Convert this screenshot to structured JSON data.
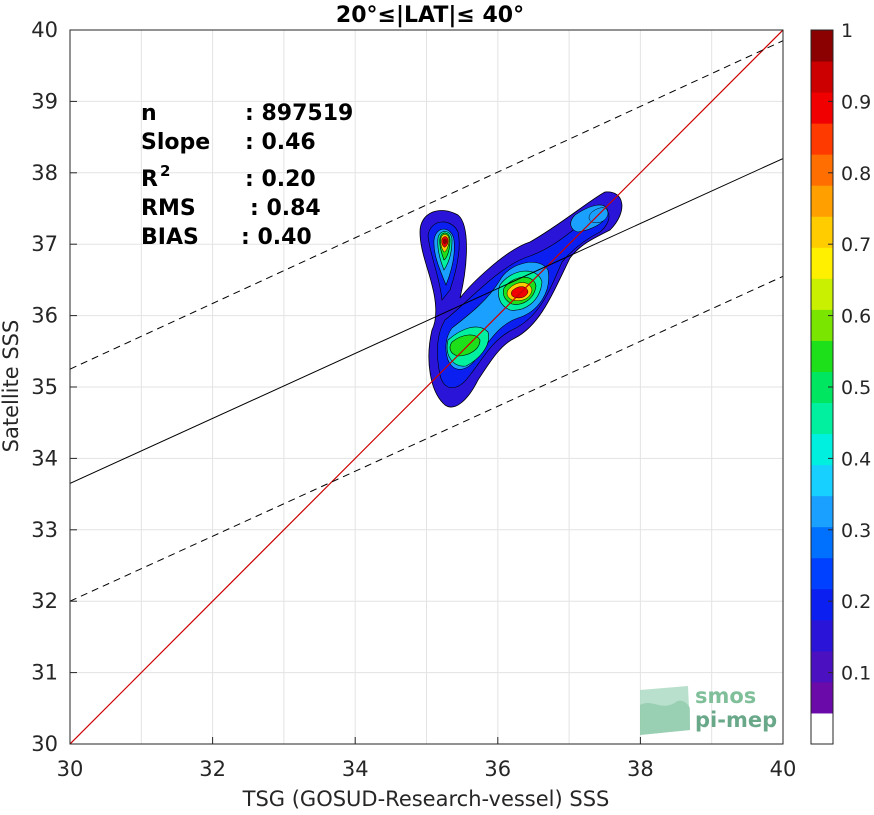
{
  "chart_data": {
    "type": "heatmap",
    "title": "20°≤|LAT|≤ 40°",
    "xlabel": "TSG (GOSUD-Research-vessel) SSS",
    "ylabel": "Satellite SSS",
    "xlim": [
      30,
      40
    ],
    "ylim": [
      30,
      40
    ],
    "xticks": [
      "30",
      "32",
      "34",
      "36",
      "38",
      "40"
    ],
    "yticks": [
      "30",
      "31",
      "32",
      "33",
      "34",
      "35",
      "36",
      "37",
      "38",
      "39",
      "40"
    ],
    "grid": true,
    "stats": [
      {
        "label": "n",
        "value": ": 897519"
      },
      {
        "label": "Slope",
        "value": ": 0.46"
      },
      {
        "label": "R",
        "sup": "2",
        "value": ": 0.20"
      },
      {
        "label": "RMS",
        "value": ": 0.84"
      },
      {
        "label": "BIAS",
        "value": ": 0.40"
      }
    ],
    "reference_lines": {
      "identity": {
        "x": [
          30,
          40
        ],
        "y": [
          30,
          40
        ],
        "color": "#cc0000"
      },
      "fit": {
        "x": [
          30,
          40
        ],
        "y": [
          33.65,
          38.2
        ],
        "color": "#000000"
      },
      "fit_upper": {
        "x": [
          30,
          40
        ],
        "y": [
          35.25,
          39.85
        ],
        "color": "#000000"
      },
      "fit_lower": {
        "x": [
          30,
          40
        ],
        "y": [
          32.0,
          36.55
        ],
        "color": "#000000"
      }
    },
    "density_peaks": [
      {
        "x": 35.25,
        "y": 37.05,
        "value": 1.0
      },
      {
        "x": 36.3,
        "y": 36.35,
        "value": 0.85
      },
      {
        "x": 35.4,
        "y": 35.55,
        "value": 0.6
      },
      {
        "x": 37.45,
        "y": 37.4,
        "value": 0.3
      }
    ],
    "colorbar": {
      "ticks": [
        "0.1",
        "0.2",
        "0.3",
        "0.4",
        "0.5",
        "0.6",
        "0.7",
        "0.8",
        "0.9",
        "1"
      ],
      "levels": 20,
      "colors": [
        "#ffffff",
        "#6a0aa8",
        "#4b10c0",
        "#2a14d8",
        "#0a1ff0",
        "#0040ff",
        "#0070ff",
        "#1aa0ff",
        "#17d0ff",
        "#00f0e0",
        "#00f0a0",
        "#00e660",
        "#1ee01a",
        "#7ae600",
        "#c8f000",
        "#fff000",
        "#ffcc00",
        "#ffa000",
        "#ff6e00",
        "#ff3a00",
        "#f00000",
        "#cc0000",
        "#8b0000"
      ]
    }
  },
  "logo": {
    "line1": "smos",
    "line2": "pi-mep"
  }
}
